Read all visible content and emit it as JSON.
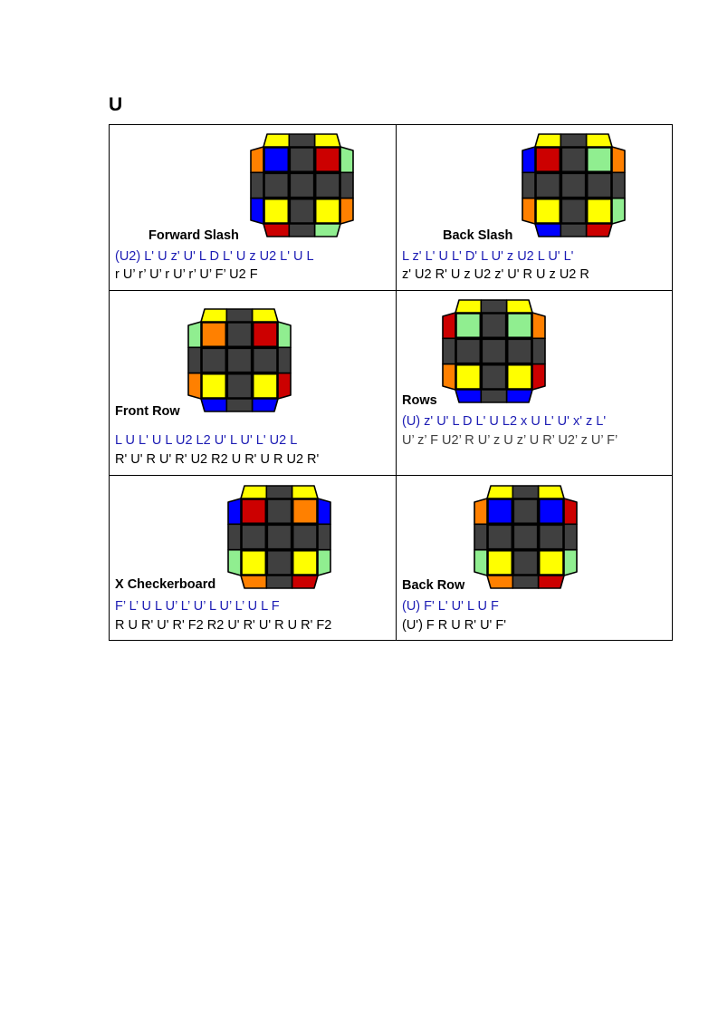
{
  "heading": "U",
  "colors": {
    "Y": "#ffff00",
    "B": "#0000ff",
    "R": "#cc0000",
    "O": "#ff8000",
    "G": "#90ee90",
    "D": "#404040",
    "blue_text": "#1c1cb4"
  },
  "cases": [
    {
      "title": "Forward Slash",
      "alg1": "(U2) L' U z' U' L D L' U z U2 L' U L",
      "alg2": "r U’ r’ U’ r U’ r’ U’ F’ U2 F",
      "cube": {
        "top": [
          "Y",
          "D",
          "Y"
        ],
        "left": [
          "O",
          "D",
          "B"
        ],
        "right": [
          "G",
          "D",
          "O"
        ],
        "bottom": [
          "R",
          "D",
          "G"
        ],
        "face": [
          "B",
          "D",
          "R",
          "D",
          "D",
          "D",
          "Y",
          "D",
          "Y"
        ]
      }
    },
    {
      "title": "Back Slash",
      "alg1": "L z' L' U L' D' L U' z U2 L U' L'",
      "alg2": "z' U2 R' U z U2 z' U' R U z U2 R",
      "cube": {
        "top": [
          "Y",
          "D",
          "Y"
        ],
        "left": [
          "B",
          "D",
          "O"
        ],
        "right": [
          "O",
          "D",
          "G"
        ],
        "bottom": [
          "B",
          "D",
          "R"
        ],
        "face": [
          "R",
          "D",
          "G",
          "D",
          "D",
          "D",
          "Y",
          "D",
          "Y"
        ]
      }
    },
    {
      "title": "Front Row",
      "alg1": "L U L' U L U2 L2 U' L U' L' U2 L",
      "alg2": "R' U' R U' R' U2 R2 U R' U R U2 R'",
      "cube": {
        "top": [
          "Y",
          "D",
          "Y"
        ],
        "left": [
          "G",
          "D",
          "O"
        ],
        "right": [
          "G",
          "D",
          "R"
        ],
        "bottom": [
          "B",
          "D",
          "B"
        ],
        "face": [
          "O",
          "D",
          "R",
          "D",
          "D",
          "D",
          "Y",
          "D",
          "Y"
        ]
      }
    },
    {
      "title": "Rows",
      "alg1": "(U) z' U' L D L' U L2 x U L' U' x' z L'",
      "alg2": "U’ z’ F U2’ R U’ z U z’ U R’ U2’ z U’ F’",
      "cube": {
        "top": [
          "Y",
          "D",
          "Y"
        ],
        "left": [
          "R",
          "D",
          "O"
        ],
        "right": [
          "O",
          "D",
          "R"
        ],
        "bottom": [
          "B",
          "D",
          "B"
        ],
        "face": [
          "G",
          "D",
          "G",
          "D",
          "D",
          "D",
          "Y",
          "D",
          "Y"
        ]
      }
    },
    {
      "title": "X Checkerboard",
      "alg1": "F’ L’ U L U’ L’ U’ L U’ L’ U L F",
      "alg2": "R U R' U' R' F2 R2 U' R' U' R U R' F2",
      "cube": {
        "top": [
          "Y",
          "D",
          "Y"
        ],
        "left": [
          "B",
          "D",
          "G"
        ],
        "right": [
          "B",
          "D",
          "G"
        ],
        "bottom": [
          "O",
          "D",
          "R"
        ],
        "face": [
          "R",
          "D",
          "O",
          "D",
          "D",
          "D",
          "Y",
          "D",
          "Y"
        ]
      }
    },
    {
      "title": "Back Row",
      "alg1": "(U) F' L' U' L U F",
      "alg2": "(U') F R U R' U' F'",
      "cube": {
        "top": [
          "Y",
          "D",
          "Y"
        ],
        "left": [
          "O",
          "D",
          "G"
        ],
        "right": [
          "R",
          "D",
          "G"
        ],
        "bottom": [
          "O",
          "D",
          "R"
        ],
        "face": [
          "B",
          "D",
          "B",
          "D",
          "D",
          "D",
          "Y",
          "D",
          "Y"
        ]
      }
    }
  ]
}
